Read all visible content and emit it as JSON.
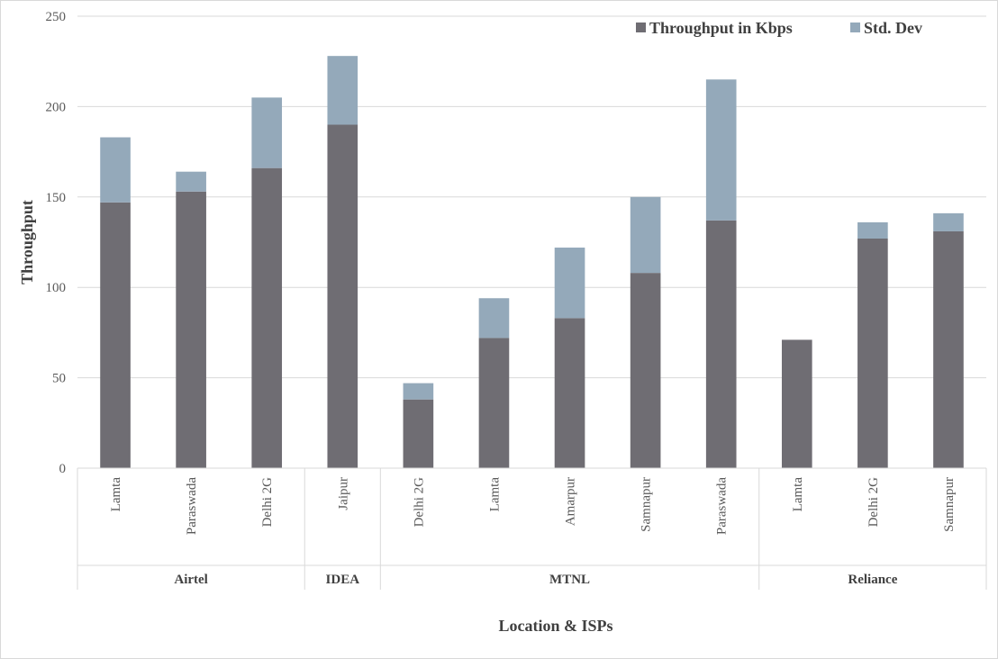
{
  "chart_data": {
    "type": "bar",
    "stacked": true,
    "xlabel": "Location & ISPs",
    "ylabel": "Throughput",
    "ylim": [
      0,
      250
    ],
    "yticks": [
      0,
      50,
      100,
      150,
      200,
      250
    ],
    "grid": true,
    "legend_position": "top-right",
    "groups": [
      {
        "name": "Airtel",
        "categories": [
          "Lamta",
          "Paraswada",
          "Delhi 2G"
        ]
      },
      {
        "name": "IDEA",
        "categories": [
          "Jaipur"
        ]
      },
      {
        "name": "MTNL",
        "categories": [
          "Delhi 2G",
          "Lamta",
          "Amarpur",
          "Samnapur",
          "Paraswada"
        ]
      },
      {
        "name": "Reliance",
        "categories": [
          "Lamta",
          "Delhi 2G",
          "Samnapur"
        ]
      }
    ],
    "categories": [
      "Lamta",
      "Paraswada",
      "Delhi 2G",
      "Jaipur",
      "Delhi 2G",
      "Lamta",
      "Amarpur",
      "Samnapur",
      "Paraswada",
      "Lamta",
      "Delhi 2G",
      "Samnapur"
    ],
    "series": [
      {
        "name": "Throughput in Kbps",
        "color": "#6f6d73",
        "values": [
          147,
          153,
          166,
          190,
          38,
          72,
          83,
          108,
          137,
          71,
          127,
          131
        ]
      },
      {
        "name": "Std. Dev",
        "color": "#94a9ba",
        "values": [
          36,
          11,
          39,
          38,
          9,
          22,
          39,
          42,
          78,
          0,
          9,
          10
        ]
      }
    ]
  }
}
